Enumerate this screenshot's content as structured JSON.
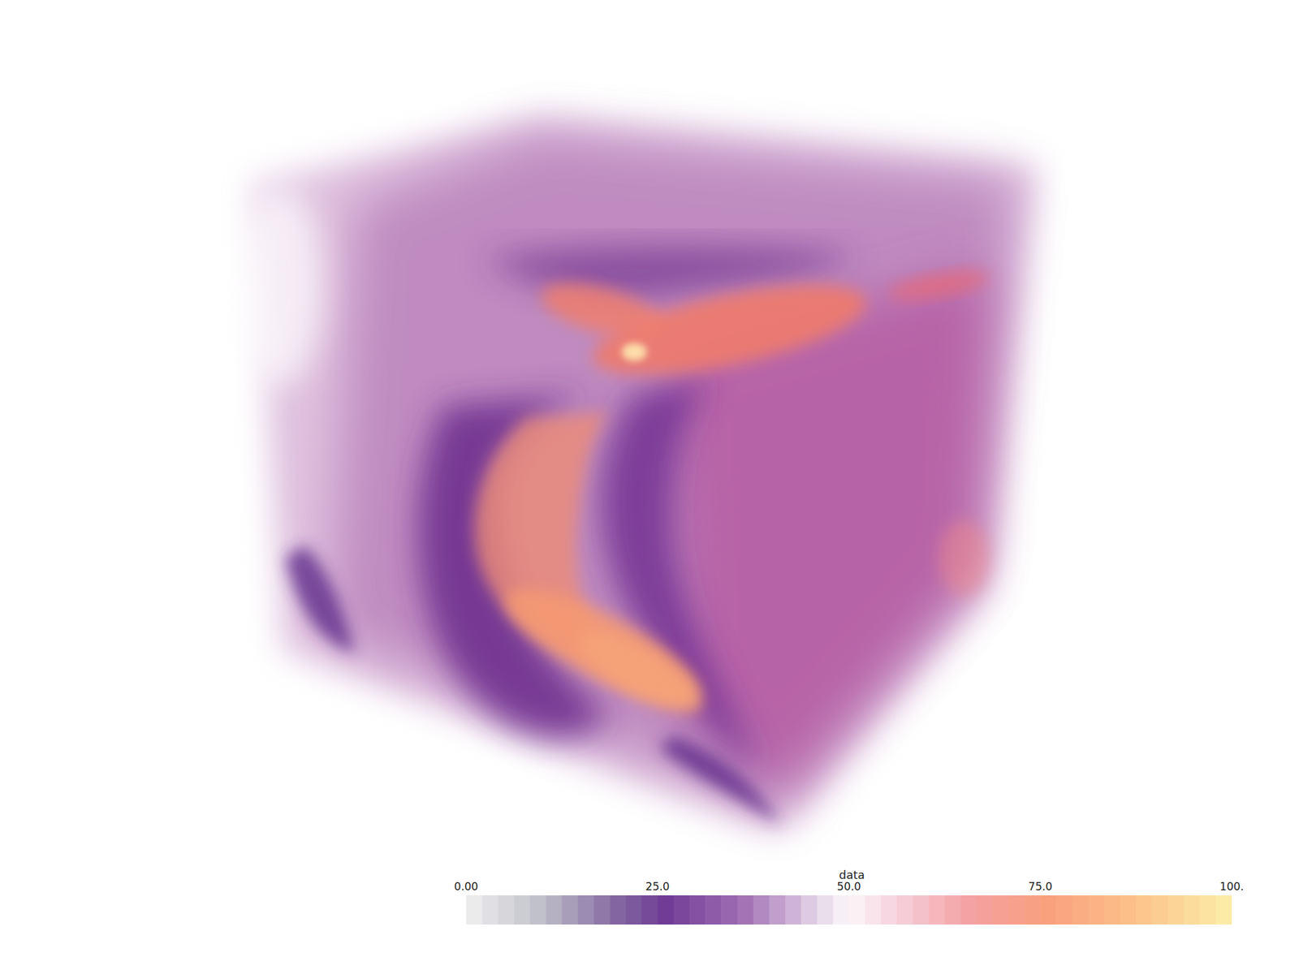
{
  "chart_data": {
    "type": "volume",
    "colorbar": {
      "title": "data",
      "range": [
        0,
        100
      ],
      "ticks": [
        {
          "value": 0,
          "label": "0.00"
        },
        {
          "value": 25,
          "label": "25.0"
        },
        {
          "value": 50,
          "label": "50.0"
        },
        {
          "value": 75,
          "label": "75.0"
        },
        {
          "value": 100,
          "label": "100."
        }
      ]
    }
  }
}
